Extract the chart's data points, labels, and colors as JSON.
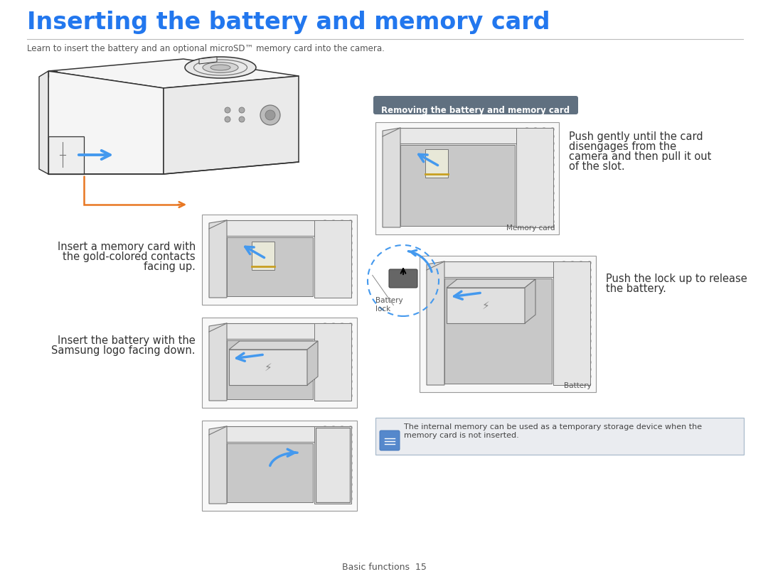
{
  "title": "Inserting the battery and memory card",
  "subtitle": "Learn to insert the battery and an optional microSD™ memory card into the camera.",
  "section_label": "Removing the battery and memory card",
  "text1_l1": "Insert a memory card with",
  "text1_l2": "the gold-colored contacts",
  "text1_l3": "facing up.",
  "text2_l1": "Insert the battery with the",
  "text2_l2": "Samsung logo facing down.",
  "text3_l1": "Push gently until the card",
  "text3_l2": "disengages from the",
  "text3_l3": "camera and then pull it out",
  "text3_l4": "of the slot.",
  "text4_l1": "Push the lock up to release",
  "text4_l2": "the battery.",
  "label_memory_card": "Memory card",
  "label_battery": "Battery",
  "label_battery_lock_l1": "Battery",
  "label_battery_lock_l2": "lock",
  "note_l1": "The internal memory can be used as a temporary storage device when the",
  "note_l2": "memory card is not inserted.",
  "footer": "Basic functions  15",
  "title_color": "#2277ee",
  "title_fs": 24,
  "sub_color": "#555555",
  "sub_fs": 8.5,
  "body_color": "#333333",
  "body_fs": 10.5,
  "small_fs": 8,
  "section_bg": "#607080",
  "section_fg": "#ffffff",
  "section_fs": 8.5,
  "note_bg": "#eaecf0",
  "note_border": "#aabbcc",
  "note_fs": 8,
  "footer_color": "#555555",
  "footer_fs": 9,
  "bg": "#ffffff",
  "arrow_blue": "#4499ee",
  "orange": "#e87722",
  "line_dark": "#333333",
  "line_mid": "#777777",
  "line_light": "#aaaaaa",
  "fill_body": "#f5f5f5",
  "fill_mid": "#e0e0e0",
  "fill_dark": "#cccccc",
  "fill_batt": "#d8d8d8"
}
